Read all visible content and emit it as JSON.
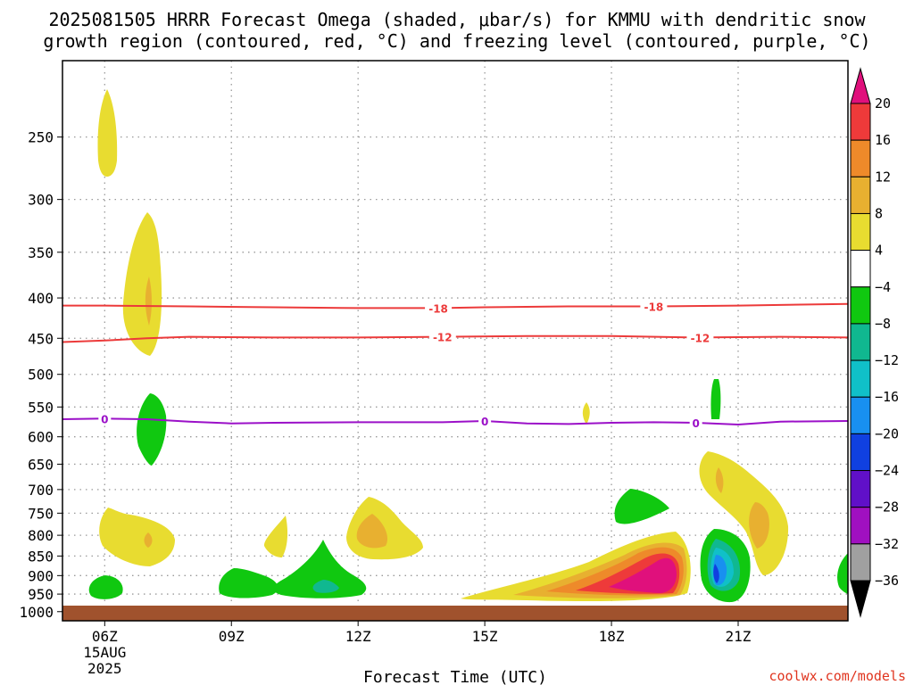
{
  "title": {
    "line1": "2025081505 HRRR Forecast Omega (shaded, μbar/s) for KMMU with dendritic snow",
    "line2": "growth region (contoured, red, °C) and freezing level (contoured, purple, °C)"
  },
  "credit": "coolwx.com/models",
  "colors": {
    "dgz_contour": "#ec3a3a",
    "freezing_contour": "#9b10c8",
    "ground": "#a0522d",
    "grid": "#9a9a9a"
  },
  "chart_data": {
    "type": "heatmap",
    "title": "2025081505 HRRR Forecast Omega (shaded, μbar/s) for KMMU with dendritic snow growth region (contoured, red, °C) and freezing level (contoured, purple, °C)",
    "xlabel": "Forecast Time (UTC)",
    "ylabel": "",
    "x_unit": "hour UTC, 15 AUG 2025",
    "xlim": [
      5,
      23.6
    ],
    "ylim": [
      1027,
      200
    ],
    "y_scale": "log-pressure (hPa)",
    "grid": true,
    "x_ticks": [
      {
        "hour": 6,
        "label": "06Z",
        "sub1": "15AUG",
        "sub2": "2025"
      },
      {
        "hour": 9,
        "label": "09Z"
      },
      {
        "hour": 12,
        "label": "12Z"
      },
      {
        "hour": 15,
        "label": "15Z"
      },
      {
        "hour": 18,
        "label": "18Z"
      },
      {
        "hour": 21,
        "label": "21Z"
      }
    ],
    "y_ticks": [
      250,
      300,
      350,
      400,
      450,
      500,
      550,
      600,
      650,
      700,
      750,
      800,
      850,
      900,
      950,
      1000
    ],
    "colorbar": {
      "units": "μbar/s",
      "labels": [
        "20",
        "16",
        "12",
        "8",
        "4",
        "−4",
        "−8",
        "−12",
        "−16",
        "−20",
        "−24",
        "−28",
        "−32",
        "−36"
      ],
      "bands": [
        {
          "range": "above 20",
          "color": "#e0107c"
        },
        {
          "range": "16 to 20",
          "color": "#ee3a3a"
        },
        {
          "range": "12 to 16",
          "color": "#ee8a2a"
        },
        {
          "range": "8 to 12",
          "color": "#e8b030"
        },
        {
          "range": "4 to 8",
          "color": "#e8dc30"
        },
        {
          "range": "-4 to 4",
          "color": "#ffffff"
        },
        {
          "range": "-8 to -4",
          "color": "#10c810"
        },
        {
          "range": "-12 to -8",
          "color": "#10b890"
        },
        {
          "range": "-16 to -12",
          "color": "#10c0c8"
        },
        {
          "range": "-20 to -16",
          "color": "#1890f0"
        },
        {
          "range": "-24 to -20",
          "color": "#1040e0"
        },
        {
          "range": "-28 to -24",
          "color": "#6010c8"
        },
        {
          "range": "-32 to -28",
          "color": "#a010c0"
        },
        {
          "range": "-36 to -32",
          "color": "#a0a0a0"
        },
        {
          "range": "below -36",
          "color": "#000000"
        }
      ]
    },
    "contours": [
      {
        "name": "-18",
        "color": "#ec3a3a",
        "points": [
          [
            5,
            409
          ],
          [
            6,
            409
          ],
          [
            8,
            410
          ],
          [
            10,
            411
          ],
          [
            12,
            412
          ],
          [
            14,
            412
          ],
          [
            15,
            411
          ],
          [
            17,
            410
          ],
          [
            19,
            410
          ],
          [
            21,
            409
          ],
          [
            23.6,
            407
          ]
        ],
        "labels": [
          [
            13.9,
            "-18"
          ],
          [
            19,
            "-18"
          ]
        ]
      },
      {
        "name": "-12",
        "color": "#ec3a3a",
        "points": [
          [
            5,
            455
          ],
          [
            6,
            453
          ],
          [
            7,
            450
          ],
          [
            8,
            448
          ],
          [
            10,
            449
          ],
          [
            12,
            449
          ],
          [
            14,
            448
          ],
          [
            16,
            447
          ],
          [
            18,
            447
          ],
          [
            20,
            449
          ],
          [
            22,
            448
          ],
          [
            23.6,
            449
          ]
        ],
        "labels": [
          [
            14,
            "-12"
          ],
          [
            20.1,
            "-12"
          ]
        ]
      },
      {
        "name": "0",
        "color": "#9b10c8",
        "points": [
          [
            5,
            570
          ],
          [
            6,
            569
          ],
          [
            7,
            570
          ],
          [
            8,
            574
          ],
          [
            9,
            577
          ],
          [
            10,
            576
          ],
          [
            12,
            575
          ],
          [
            14,
            575
          ],
          [
            15,
            573
          ],
          [
            16,
            577
          ],
          [
            17,
            578
          ],
          [
            18,
            576
          ],
          [
            19,
            575
          ],
          [
            20,
            576
          ],
          [
            21,
            579
          ],
          [
            22,
            574
          ],
          [
            23.6,
            573
          ]
        ],
        "labels": [
          [
            6,
            "0"
          ],
          [
            15,
            "0"
          ],
          [
            20,
            "0"
          ]
        ]
      }
    ],
    "omega_regions": [
      {
        "x": 6,
        "p": 255,
        "omega": 5
      },
      {
        "x": 7,
        "p": 390,
        "omega": 6
      },
      {
        "x": 7,
        "p": 410,
        "omega": 9
      },
      {
        "x": 7,
        "p": 595,
        "omega": -6
      },
      {
        "x": 6.7,
        "p": 810,
        "omega": 5
      },
      {
        "x": 7,
        "p": 830,
        "omega": 9
      },
      {
        "x": 10,
        "p": 820,
        "omega": 6
      },
      {
        "x": 12.1,
        "p": 800,
        "omega": 6
      },
      {
        "x": 12.1,
        "p": 810,
        "omega": 10
      },
      {
        "x": 17,
        "p": 580,
        "omega": 5
      },
      {
        "x": 17,
        "p": 960,
        "omega": 6
      },
      {
        "x": 18,
        "p": 930,
        "omega": 12
      },
      {
        "x": 18.7,
        "p": 920,
        "omega": 16
      },
      {
        "x": 18.8,
        "p": 915,
        "omega": 22
      },
      {
        "x": 20.9,
        "p": 740,
        "omega": 6
      },
      {
        "x": 20,
        "p": 700,
        "omega": 9
      },
      {
        "x": 20.9,
        "p": 780,
        "omega": 9
      },
      {
        "x": 18,
        "p": 750,
        "omega": -6
      },
      {
        "x": 20,
        "p": 550,
        "omega": -6
      },
      {
        "x": 5.9,
        "p": 955,
        "omega": -6
      },
      {
        "x": 8.8,
        "p": 945,
        "omega": -6
      },
      {
        "x": 10.9,
        "p": 945,
        "omega": -6
      },
      {
        "x": 10.9,
        "p": 950,
        "omega": -10
      },
      {
        "x": 20.1,
        "p": 905,
        "omega": -8
      },
      {
        "x": 20.1,
        "p": 910,
        "omega": -14
      },
      {
        "x": 20.1,
        "p": 915,
        "omega": -18
      },
      {
        "x": 20.1,
        "p": 920,
        "omega": -22
      },
      {
        "x": 23.6,
        "p": 930,
        "omega": -6
      }
    ]
  }
}
